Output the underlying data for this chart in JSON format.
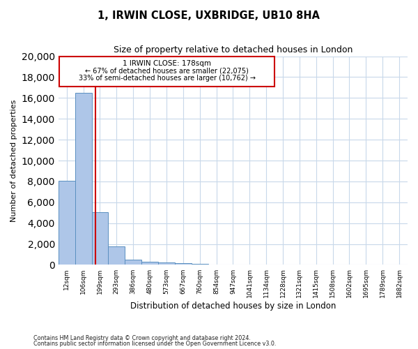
{
  "title_line1": "1, IRWIN CLOSE, UXBRIDGE, UB10 8HA",
  "title_line2": "Size of property relative to detached houses in London",
  "xlabel": "Distribution of detached houses by size in London",
  "ylabel": "Number of detached properties",
  "bar_labels": [
    "12sqm",
    "106sqm",
    "199sqm",
    "293sqm",
    "386sqm",
    "480sqm",
    "573sqm",
    "667sqm",
    "760sqm",
    "854sqm",
    "947sqm",
    "1041sqm",
    "1134sqm",
    "1228sqm",
    "1321sqm",
    "1415sqm",
    "1508sqm",
    "1602sqm",
    "1695sqm",
    "1789sqm",
    "1882sqm"
  ],
  "bar_values": [
    8050,
    16500,
    5050,
    1750,
    500,
    300,
    200,
    150,
    100,
    0,
    0,
    0,
    0,
    0,
    0,
    0,
    0,
    0,
    0,
    0,
    0
  ],
  "bar_color": "#aec6e8",
  "bar_edge_color": "#5a8fc0",
  "property_label": "1 IRWIN CLOSE: 178sqm",
  "annotation_line2": "← 67% of detached houses are smaller (22,075)",
  "annotation_line3": "33% of semi-detached houses are larger (10,762) →",
  "vline_color": "#cc0000",
  "vline_bar_index": 1.72,
  "ylim": [
    0,
    20000
  ],
  "yticks": [
    0,
    2000,
    4000,
    6000,
    8000,
    10000,
    12000,
    14000,
    16000,
    18000,
    20000
  ],
  "footnote1": "Contains HM Land Registry data © Crown copyright and database right 2024.",
  "footnote2": "Contains public sector information licensed under the Open Government Licence v3.0.",
  "background_color": "#ffffff",
  "grid_color": "#c8d8ea"
}
